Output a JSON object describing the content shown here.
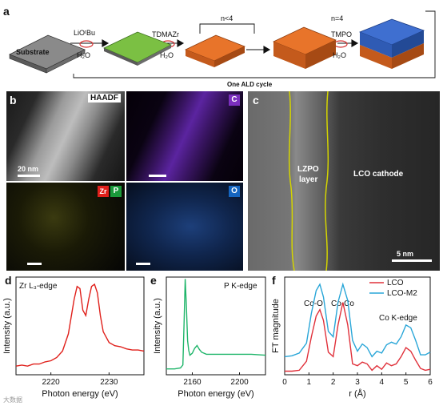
{
  "panel_a": {
    "letter": "a",
    "substrate": "Substrate",
    "step1_top": "LiOᵗBu",
    "step1_bottom": "H₂O",
    "step2_top": "TDMAZr",
    "step2_bottom": "H₂O",
    "loop_label": "n<4",
    "step3_label": "n=4",
    "step4_top": "TMPO",
    "step4_bottom": "H₂O",
    "cycle_caption": "One ALD cycle"
  },
  "panel_b": {
    "letter": "b",
    "haadf": "HAADF",
    "scale": "20 nm",
    "c_label": "C",
    "zr_label": "Zr",
    "p_label": "P",
    "o_label": "O"
  },
  "panel_c": {
    "letter": "c",
    "layer_label_1": "LZPO",
    "layer_label_2": "layer",
    "cathode_label": "LCO cathode",
    "scale": "5 nm"
  },
  "panel_d": {
    "letter": "d",
    "edge": "Zr L₃-edge"
  },
  "panel_e": {
    "letter": "e",
    "edge": "P K-edge"
  },
  "panel_f": {
    "letter": "f",
    "peak1": "Co-O",
    "peak2": "Co-Co",
    "edge": "Co K-edge"
  },
  "watermark": "大数据",
  "colors": {
    "zr_red": "#e0201b",
    "p_green": "#1a9a3a",
    "c_purple": "#7b2fbe",
    "o_blue": "#1565c0",
    "spheres_green": "#7bc043",
    "spheres_orange": "#e8742a",
    "spheres_blue": "#3f6fd0",
    "lzpo_line": "#d4d400"
  },
  "chart_data": [
    {
      "type": "line",
      "panel": "d",
      "xlabel": "Photon energy (eV)",
      "ylabel": "Intensity (a.u.)",
      "xlim": [
        2214,
        2236
      ],
      "xticks": [
        2220,
        2230
      ],
      "series": [
        {
          "color": "#e0201b",
          "x": [
            2214,
            2215,
            2216,
            2217,
            2218,
            2219,
            2220,
            2221,
            2222,
            2223,
            2224,
            2224.5,
            2225,
            2225.5,
            2226,
            2226.5,
            2227,
            2227.5,
            2228,
            2228.5,
            2229,
            2230,
            2231,
            2232,
            2233,
            2234,
            2235,
            2236
          ],
          "y": [
            0.08,
            0.09,
            0.08,
            0.1,
            0.1,
            0.12,
            0.13,
            0.16,
            0.22,
            0.38,
            0.7,
            0.82,
            0.8,
            0.6,
            0.55,
            0.7,
            0.82,
            0.84,
            0.76,
            0.55,
            0.4,
            0.3,
            0.27,
            0.26,
            0.24,
            0.23,
            0.23,
            0.22
          ]
        }
      ]
    },
    {
      "type": "line",
      "panel": "e",
      "xlabel": "Photon energy (eV)",
      "ylabel": "Intensity (a.u.)",
      "xlim": [
        2138,
        2222
      ],
      "xticks": [
        2160,
        2200
      ],
      "series": [
        {
          "color": "#1fb56a",
          "x": [
            2138,
            2145,
            2150,
            2152,
            2153,
            2154,
            2155,
            2156,
            2157,
            2158,
            2160,
            2162,
            2164,
            2166,
            2168,
            2172,
            2180,
            2190,
            2200,
            2210,
            2222
          ],
          "y": [
            0.06,
            0.06,
            0.07,
            0.1,
            0.5,
            0.98,
            0.7,
            0.35,
            0.25,
            0.2,
            0.22,
            0.27,
            0.3,
            0.26,
            0.23,
            0.21,
            0.21,
            0.21,
            0.21,
            0.21,
            0.2
          ]
        }
      ]
    },
    {
      "type": "line",
      "panel": "f",
      "xlabel": "r (Å)",
      "ylabel": "FT magnitude",
      "xlim": [
        0,
        6
      ],
      "xticks": [
        0,
        1,
        2,
        3,
        4,
        5,
        6
      ],
      "series": [
        {
          "name": "LCO",
          "color": "#e0303a",
          "x": [
            0,
            0.3,
            0.6,
            0.9,
            1.1,
            1.3,
            1.45,
            1.6,
            1.8,
            2.0,
            2.2,
            2.4,
            2.6,
            2.8,
            3.0,
            3.2,
            3.4,
            3.6,
            3.8,
            4.0,
            4.2,
            4.4,
            4.6,
            4.8,
            5.0,
            5.2,
            5.4,
            5.6,
            5.8,
            6.0
          ],
          "y": [
            0.04,
            0.04,
            0.05,
            0.15,
            0.42,
            0.65,
            0.72,
            0.6,
            0.25,
            0.2,
            0.55,
            0.8,
            0.55,
            0.12,
            0.1,
            0.14,
            0.12,
            0.05,
            0.1,
            0.06,
            0.13,
            0.1,
            0.12,
            0.2,
            0.3,
            0.26,
            0.16,
            0.07,
            0.05,
            0.06
          ]
        },
        {
          "name": "LCO-M2",
          "color": "#29a6d8",
          "x": [
            0,
            0.3,
            0.6,
            0.9,
            1.1,
            1.3,
            1.45,
            1.6,
            1.8,
            2.0,
            2.2,
            2.4,
            2.6,
            2.8,
            3.0,
            3.2,
            3.4,
            3.6,
            3.8,
            4.0,
            4.2,
            4.4,
            4.6,
            4.8,
            5.0,
            5.2,
            5.4,
            5.6,
            5.8,
            6.0
          ],
          "y": [
            0.2,
            0.21,
            0.24,
            0.35,
            0.68,
            0.93,
            1.0,
            0.86,
            0.48,
            0.42,
            0.8,
            1.0,
            0.82,
            0.38,
            0.26,
            0.34,
            0.3,
            0.2,
            0.26,
            0.24,
            0.33,
            0.36,
            0.34,
            0.42,
            0.55,
            0.52,
            0.38,
            0.22,
            0.22,
            0.25
          ]
        }
      ]
    }
  ]
}
